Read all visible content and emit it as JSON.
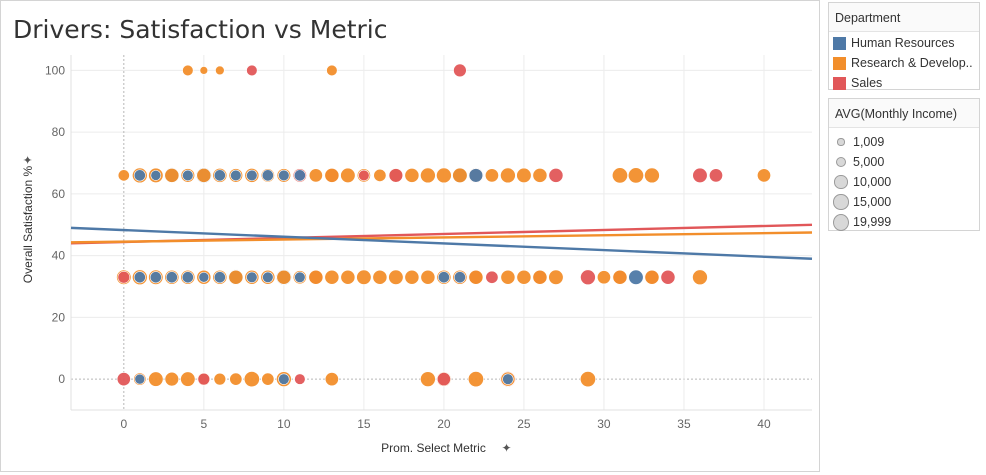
{
  "title": "Drivers: Satisfaction vs Metric",
  "legend_department": {
    "title": "Department",
    "items": [
      {
        "label": "Human Resources",
        "color": "#4e79a7"
      },
      {
        "label": "Research & Develop..",
        "color": "#f28e2b"
      },
      {
        "label": "Sales",
        "color": "#e15759"
      }
    ]
  },
  "legend_income": {
    "title": "AVG(Monthly Income)",
    "items": [
      {
        "label": "1,009",
        "value": 1009
      },
      {
        "label": "5,000",
        "value": 5000
      },
      {
        "label": "10,000",
        "value": 10000
      },
      {
        "label": "15,000",
        "value": 15000
      },
      {
        "label": "19,999",
        "value": 19999
      }
    ]
  },
  "pin_icon": "pin-icon",
  "chart_data": {
    "type": "scatter",
    "title": "Drivers: Satisfaction vs Metric",
    "xlabel": "Prom. Select Metric",
    "ylabel": "Overall Satisfaction %",
    "xlim": [
      -3.3,
      43
    ],
    "ylim": [
      -10,
      105
    ],
    "x_ticks": [
      0,
      5,
      10,
      15,
      20,
      25,
      30,
      35,
      40
    ],
    "y_ticks": [
      0,
      20,
      40,
      60,
      80,
      100
    ],
    "grid": true,
    "series": [
      {
        "name": "Sales",
        "color": "#e15759",
        "points": [
          {
            "x": 21,
            "y": 100,
            "s": 9000
          },
          {
            "x": 8,
            "y": 100,
            "s": 5000
          },
          {
            "x": 36,
            "y": 66,
            "s": 13000
          },
          {
            "x": 37,
            "y": 66,
            "s": 10000
          },
          {
            "x": 22,
            "y": 66,
            "s": 15000
          },
          {
            "x": 13,
            "y": 66,
            "s": 12000
          },
          {
            "x": 17,
            "y": 66,
            "s": 11000
          },
          {
            "x": 11,
            "y": 66,
            "s": 10000
          },
          {
            "x": 15,
            "y": 66,
            "s": 5000
          },
          {
            "x": 27,
            "y": 66,
            "s": 12000
          },
          {
            "x": 0,
            "y": 33,
            "s": 7000
          },
          {
            "x": 12,
            "y": 33,
            "s": 12000
          },
          {
            "x": 21,
            "y": 33,
            "s": 13000
          },
          {
            "x": 22,
            "y": 33,
            "s": 12000
          },
          {
            "x": 23,
            "y": 33,
            "s": 8000
          },
          {
            "x": 26,
            "y": 33,
            "s": 12000
          },
          {
            "x": 29,
            "y": 33,
            "s": 14000
          },
          {
            "x": 31,
            "y": 33,
            "s": 12000
          },
          {
            "x": 33,
            "y": 33,
            "s": 12000
          },
          {
            "x": 34,
            "y": 33,
            "s": 12000
          },
          {
            "x": 0,
            "y": 0,
            "s": 10000
          },
          {
            "x": 1,
            "y": 0,
            "s": 9000
          },
          {
            "x": 5,
            "y": 0,
            "s": 7000
          },
          {
            "x": 11,
            "y": 0,
            "s": 5000
          },
          {
            "x": 20,
            "y": 0,
            "s": 10000
          },
          {
            "x": 24,
            "y": 0,
            "s": 15000
          }
        ],
        "trend": [
          [
            -3.3,
            44
          ],
          [
            43,
            50
          ]
        ]
      },
      {
        "name": "Research & Develop..",
        "color": "#f28e2b",
        "points": [
          {
            "x": 4,
            "y": 100,
            "s": 5000
          },
          {
            "x": 5,
            "y": 100,
            "s": 1500
          },
          {
            "x": 6,
            "y": 100,
            "s": 2500
          },
          {
            "x": 13,
            "y": 100,
            "s": 5000
          },
          {
            "x": 0,
            "y": 66,
            "s": 6000
          },
          {
            "x": 1,
            "y": 66,
            "s": 14000
          },
          {
            "x": 2,
            "y": 66,
            "s": 13000
          },
          {
            "x": 3,
            "y": 66,
            "s": 12000
          },
          {
            "x": 4,
            "y": 66,
            "s": 11000
          },
          {
            "x": 5,
            "y": 66,
            "s": 12000
          },
          {
            "x": 6,
            "y": 66,
            "s": 12000
          },
          {
            "x": 7,
            "y": 66,
            "s": 11000
          },
          {
            "x": 8,
            "y": 66,
            "s": 12000
          },
          {
            "x": 9,
            "y": 66,
            "s": 10000
          },
          {
            "x": 10,
            "y": 66,
            "s": 11000
          },
          {
            "x": 11,
            "y": 66,
            "s": 12000
          },
          {
            "x": 12,
            "y": 66,
            "s": 10000
          },
          {
            "x": 13,
            "y": 66,
            "s": 12000
          },
          {
            "x": 14,
            "y": 66,
            "s": 13000
          },
          {
            "x": 15,
            "y": 66,
            "s": 10000
          },
          {
            "x": 16,
            "y": 66,
            "s": 8000
          },
          {
            "x": 17,
            "y": 66,
            "s": 12000
          },
          {
            "x": 18,
            "y": 66,
            "s": 12000
          },
          {
            "x": 19,
            "y": 66,
            "s": 14000
          },
          {
            "x": 20,
            "y": 66,
            "s": 14000
          },
          {
            "x": 21,
            "y": 66,
            "s": 13000
          },
          {
            "x": 22,
            "y": 66,
            "s": 13000
          },
          {
            "x": 23,
            "y": 66,
            "s": 10000
          },
          {
            "x": 24,
            "y": 66,
            "s": 14000
          },
          {
            "x": 25,
            "y": 66,
            "s": 13000
          },
          {
            "x": 26,
            "y": 66,
            "s": 12000
          },
          {
            "x": 31,
            "y": 66,
            "s": 15000
          },
          {
            "x": 32,
            "y": 66,
            "s": 15000
          },
          {
            "x": 33,
            "y": 66,
            "s": 14000
          },
          {
            "x": 40,
            "y": 66,
            "s": 10000
          },
          {
            "x": 0,
            "y": 33,
            "s": 13000
          },
          {
            "x": 1,
            "y": 33,
            "s": 14000
          },
          {
            "x": 2,
            "y": 33,
            "s": 13000
          },
          {
            "x": 3,
            "y": 33,
            "s": 12000
          },
          {
            "x": 4,
            "y": 33,
            "s": 12000
          },
          {
            "x": 5,
            "y": 33,
            "s": 12000
          },
          {
            "x": 6,
            "y": 33,
            "s": 12000
          },
          {
            "x": 7,
            "y": 33,
            "s": 12000
          },
          {
            "x": 8,
            "y": 33,
            "s": 12000
          },
          {
            "x": 9,
            "y": 33,
            "s": 12000
          },
          {
            "x": 10,
            "y": 33,
            "s": 12000
          },
          {
            "x": 11,
            "y": 33,
            "s": 10000
          },
          {
            "x": 12,
            "y": 33,
            "s": 12000
          },
          {
            "x": 13,
            "y": 33,
            "s": 12000
          },
          {
            "x": 14,
            "y": 33,
            "s": 12000
          },
          {
            "x": 15,
            "y": 33,
            "s": 13000
          },
          {
            "x": 16,
            "y": 33,
            "s": 12000
          },
          {
            "x": 17,
            "y": 33,
            "s": 13000
          },
          {
            "x": 18,
            "y": 33,
            "s": 12000
          },
          {
            "x": 19,
            "y": 33,
            "s": 12000
          },
          {
            "x": 20,
            "y": 33,
            "s": 12000
          },
          {
            "x": 21,
            "y": 33,
            "s": 12000
          },
          {
            "x": 22,
            "y": 33,
            "s": 12000
          },
          {
            "x": 24,
            "y": 33,
            "s": 12000
          },
          {
            "x": 25,
            "y": 33,
            "s": 12000
          },
          {
            "x": 26,
            "y": 33,
            "s": 12000
          },
          {
            "x": 27,
            "y": 33,
            "s": 13000
          },
          {
            "x": 30,
            "y": 33,
            "s": 10000
          },
          {
            "x": 31,
            "y": 33,
            "s": 12000
          },
          {
            "x": 33,
            "y": 33,
            "s": 12000
          },
          {
            "x": 36,
            "y": 33,
            "s": 14000
          },
          {
            "x": 1,
            "y": 0,
            "s": 8000
          },
          {
            "x": 2,
            "y": 0,
            "s": 13000
          },
          {
            "x": 3,
            "y": 0,
            "s": 11000
          },
          {
            "x": 4,
            "y": 0,
            "s": 13000
          },
          {
            "x": 5,
            "y": 0,
            "s": 9000
          },
          {
            "x": 6,
            "y": 0,
            "s": 7000
          },
          {
            "x": 7,
            "y": 0,
            "s": 8000
          },
          {
            "x": 8,
            "y": 0,
            "s": 15000
          },
          {
            "x": 9,
            "y": 0,
            "s": 8000
          },
          {
            "x": 10,
            "y": 0,
            "s": 14000
          },
          {
            "x": 13,
            "y": 0,
            "s": 10000
          },
          {
            "x": 19,
            "y": 0,
            "s": 14000
          },
          {
            "x": 20,
            "y": 0,
            "s": 13000
          },
          {
            "x": 22,
            "y": 0,
            "s": 15000
          },
          {
            "x": 24,
            "y": 0,
            "s": 12000
          },
          {
            "x": 29,
            "y": 0,
            "s": 15000
          }
        ],
        "trend": [
          [
            -3.3,
            44.3
          ],
          [
            43,
            47.5
          ]
        ]
      },
      {
        "name": "Human Resources",
        "color": "#4e79a7",
        "points": [
          {
            "x": 1,
            "y": 66,
            "s": 6000
          },
          {
            "x": 2,
            "y": 66,
            "s": 4000
          },
          {
            "x": 3,
            "y": 66,
            "s": 14000
          },
          {
            "x": 5,
            "y": 66,
            "s": 15000
          },
          {
            "x": 4,
            "y": 66,
            "s": 5000
          },
          {
            "x": 6,
            "y": 66,
            "s": 6000
          },
          {
            "x": 7,
            "y": 66,
            "s": 5000
          },
          {
            "x": 8,
            "y": 66,
            "s": 5000
          },
          {
            "x": 9,
            "y": 66,
            "s": 6000
          },
          {
            "x": 10,
            "y": 66,
            "s": 5000
          },
          {
            "x": 11,
            "y": 66,
            "s": 6000
          },
          {
            "x": 21,
            "y": 66,
            "s": 14000
          },
          {
            "x": 22,
            "y": 66,
            "s": 11000
          },
          {
            "x": 1,
            "y": 33,
            "s": 6000
          },
          {
            "x": 2,
            "y": 33,
            "s": 6000
          },
          {
            "x": 3,
            "y": 33,
            "s": 6000
          },
          {
            "x": 4,
            "y": 33,
            "s": 6000
          },
          {
            "x": 5,
            "y": 33,
            "s": 4000
          },
          {
            "x": 6,
            "y": 33,
            "s": 6000
          },
          {
            "x": 7,
            "y": 33,
            "s": 14000
          },
          {
            "x": 8,
            "y": 33,
            "s": 5000
          },
          {
            "x": 9,
            "y": 33,
            "s": 5000
          },
          {
            "x": 10,
            "y": 33,
            "s": 15000
          },
          {
            "x": 11,
            "y": 33,
            "s": 5000
          },
          {
            "x": 20,
            "y": 33,
            "s": 6000
          },
          {
            "x": 21,
            "y": 33,
            "s": 6000
          },
          {
            "x": 32,
            "y": 33,
            "s": 13000
          },
          {
            "x": 1,
            "y": 0,
            "s": 4000
          },
          {
            "x": 10,
            "y": 0,
            "s": 5000
          },
          {
            "x": 24,
            "y": 0,
            "s": 5000
          }
        ],
        "trend": [
          [
            -3.3,
            49
          ],
          [
            43,
            39
          ]
        ]
      }
    ]
  }
}
